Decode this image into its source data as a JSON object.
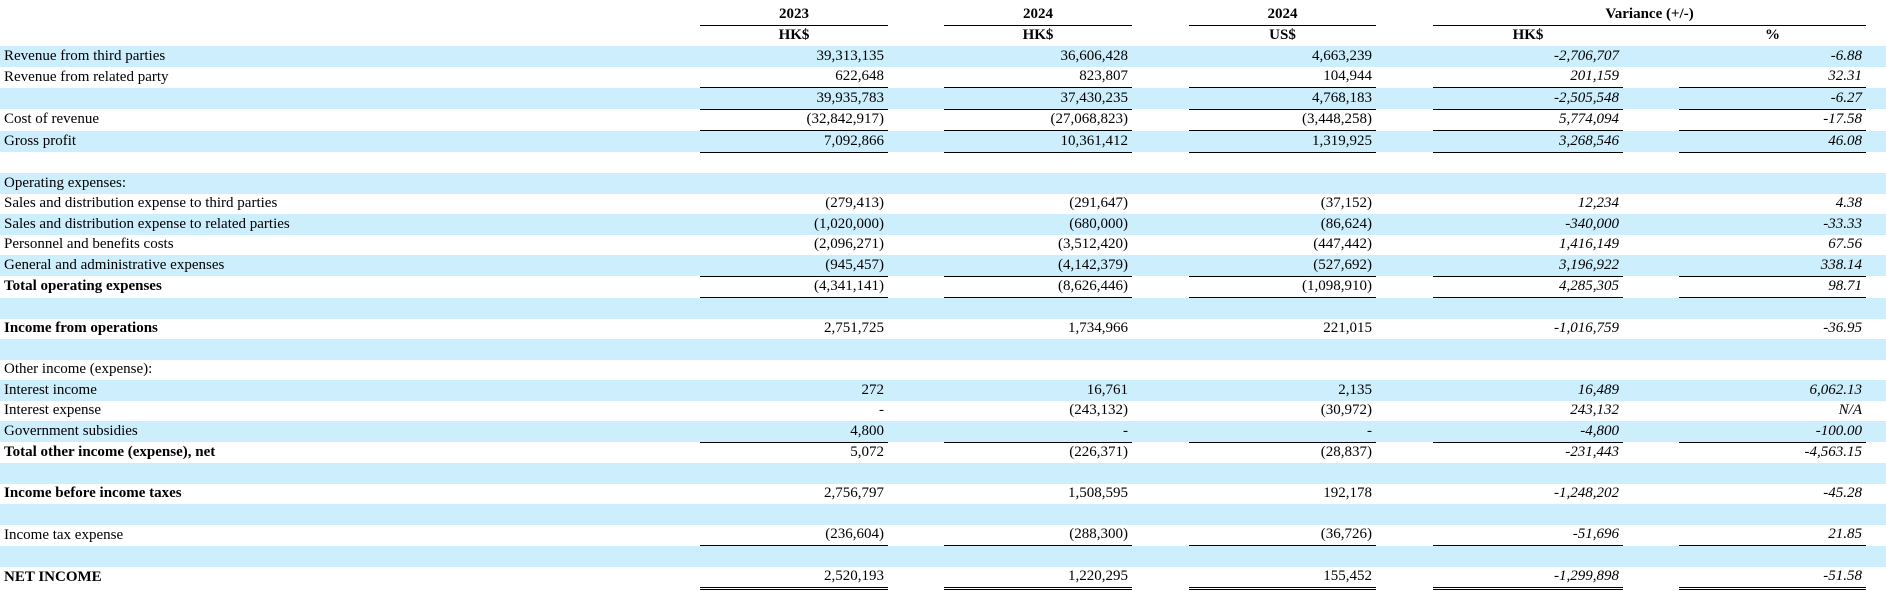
{
  "header": {
    "years": [
      "2023",
      "2024",
      "2024"
    ],
    "variance": "Variance (+/-)",
    "currencies": [
      "HK$",
      "HK$",
      "US$",
      "HK$",
      "%"
    ]
  },
  "rows": [
    {
      "label": "Revenue from third parties",
      "values": [
        "39,313,135",
        "36,606,428",
        "4,663,239",
        "-2,706,707",
        "-6.88"
      ]
    },
    {
      "label": "Revenue from related party",
      "values": [
        "622,648",
        "823,807",
        "104,944",
        "201,159",
        "32.31"
      ]
    },
    {
      "values": [
        "39,935,783",
        "37,430,235",
        "4,768,183",
        "-2,505,548",
        "-6.27"
      ]
    },
    {
      "label": "Cost of revenue",
      "values": [
        "(32,842,917)",
        "(27,068,823)",
        "(3,448,258)",
        "5,774,094",
        "-17.58"
      ]
    },
    {
      "label": "Gross profit",
      "values": [
        "7,092,866",
        "10,361,412",
        "1,319,925",
        "3,268,546",
        "46.08"
      ]
    },
    {
      "label": "Operating expenses:"
    },
    {
      "label": "Sales and distribution expense to third parties",
      "values": [
        "(279,413)",
        "(291,647)",
        "(37,152)",
        "12,234",
        "4.38"
      ]
    },
    {
      "label": "Sales and distribution expense to related parties",
      "values": [
        "(1,020,000)",
        "(680,000)",
        "(86,624)",
        "-340,000",
        "-33.33"
      ]
    },
    {
      "label": "Personnel and benefits costs",
      "values": [
        "(2,096,271)",
        "(3,512,420)",
        "(447,442)",
        "1,416,149",
        "67.56"
      ]
    },
    {
      "label": "General and administrative expenses",
      "values": [
        "(945,457)",
        "(4,142,379)",
        "(527,692)",
        "3,196,922",
        "338.14"
      ]
    },
    {
      "label": "Total operating expenses",
      "values": [
        "(4,341,141)",
        "(8,626,446)",
        "(1,098,910)",
        "4,285,305",
        "98.71"
      ]
    },
    {
      "label": "Income from operations",
      "values": [
        "2,751,725",
        "1,734,966",
        "221,015",
        "-1,016,759",
        "-36.95"
      ]
    },
    {
      "label": "Other income (expense):"
    },
    {
      "label": "Interest income",
      "values": [
        "272",
        "16,761",
        "2,135",
        "16,489",
        "6,062.13"
      ]
    },
    {
      "label": "Interest expense",
      "values": [
        "-",
        "(243,132)",
        "(30,972)",
        "243,132",
        "N/A"
      ]
    },
    {
      "label": "Government subsidies",
      "values": [
        "4,800",
        "-",
        "-",
        "-4,800",
        "-100.00"
      ]
    },
    {
      "label": "Total other income (expense), net",
      "values": [
        "5,072",
        "(226,371)",
        "(28,837)",
        "-231,443",
        "-4,563.15"
      ]
    },
    {
      "label": "Income before income taxes",
      "values": [
        "2,756,797",
        "1,508,595",
        "192,178",
        "-1,248,202",
        "-45.28"
      ]
    },
    {
      "label": "Income tax expense",
      "values": [
        "(236,604)",
        "(288,300)",
        "(36,726)",
        "-51,696",
        "21.85"
      ]
    },
    {
      "label": "NET INCOME",
      "values": [
        "2,520,193",
        "1,220,295",
        "155,452",
        "-1,299,898",
        "-51.58"
      ]
    }
  ]
}
